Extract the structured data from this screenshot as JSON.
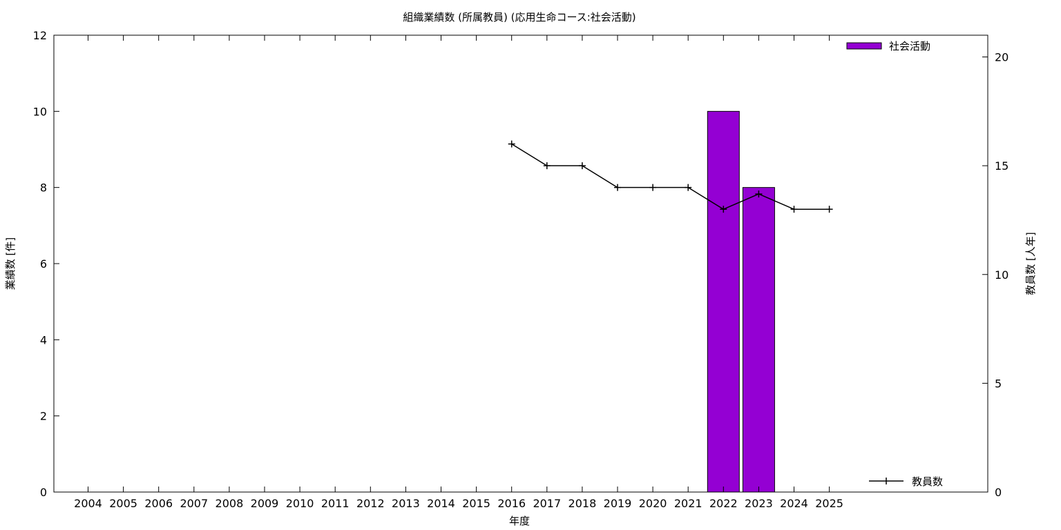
{
  "chart_data": {
    "type": "bar",
    "title": "組織業績数 (所属教員) (応用生命コース:社会活動)",
    "xlabel": "年度",
    "ylabel": "業績数 [件]",
    "y2label": "教員数 [人年]",
    "categories": [
      "2004",
      "2005",
      "2006",
      "2007",
      "2008",
      "2009",
      "2010",
      "2011",
      "2012",
      "2013",
      "2014",
      "2015",
      "2016",
      "2017",
      "2018",
      "2019",
      "2020",
      "2021",
      "2022",
      "2023",
      "2024",
      "2025"
    ],
    "ylim": [
      0,
      12
    ],
    "yticks": [
      0,
      2,
      4,
      6,
      8,
      10,
      12
    ],
    "y2lim": [
      0,
      21
    ],
    "y2ticks": [
      0,
      5,
      10,
      15,
      20
    ],
    "grid": false,
    "series": [
      {
        "name": "社会活動",
        "kind": "bar",
        "axis": "left",
        "color": "#9400d3",
        "values": [
          null,
          null,
          null,
          null,
          null,
          null,
          null,
          null,
          null,
          null,
          null,
          null,
          null,
          null,
          null,
          null,
          null,
          null,
          10,
          8,
          null,
          null
        ]
      },
      {
        "name": "教員数",
        "kind": "line",
        "axis": "right",
        "color": "#000000",
        "values": [
          null,
          null,
          null,
          null,
          null,
          null,
          null,
          null,
          null,
          null,
          null,
          null,
          16,
          15,
          15,
          14,
          14,
          14,
          13,
          13.7,
          13,
          13
        ]
      }
    ],
    "legend": [
      {
        "label": "社会活動",
        "symbol": "bar",
        "placement": "top-right"
      },
      {
        "label": "教員数",
        "symbol": "line-point",
        "placement": "bottom-right"
      }
    ]
  }
}
